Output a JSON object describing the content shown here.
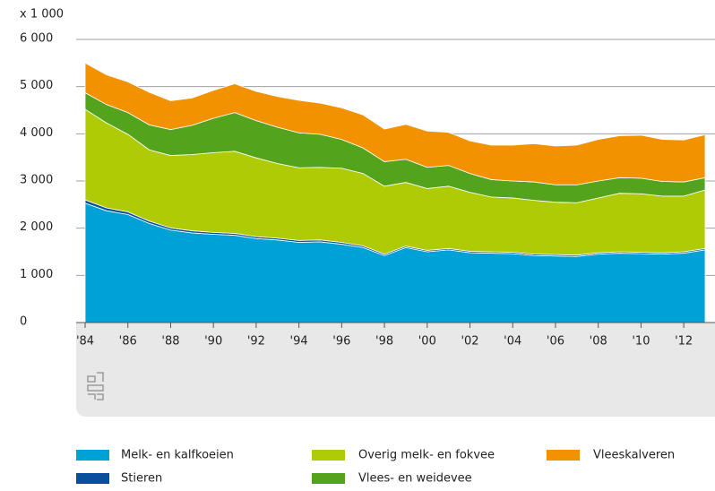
{
  "chart_data": {
    "type": "area",
    "stacked": true,
    "ylabel": "x 1 000",
    "x": [
      1984,
      1985,
      1986,
      1987,
      1988,
      1989,
      1990,
      1991,
      1992,
      1993,
      1994,
      1995,
      1996,
      1997,
      1998,
      1999,
      2000,
      2001,
      2002,
      2003,
      2004,
      2005,
      2006,
      2007,
      2008,
      2009,
      2010,
      2011,
      2012,
      2013
    ],
    "series": [
      {
        "name": "Melk- en kalfkoeien",
        "color": "#00a1d6",
        "values": [
          2530,
          2370,
          2290,
          2100,
          1960,
          1900,
          1870,
          1850,
          1780,
          1750,
          1700,
          1710,
          1660,
          1590,
          1420,
          1590,
          1500,
          1540,
          1480,
          1470,
          1460,
          1420,
          1410,
          1400,
          1450,
          1470,
          1460,
          1450,
          1470,
          1540
        ]
      },
      {
        "name": "Stieren",
        "color": "#0a4f9e",
        "values": [
          70,
          60,
          55,
          50,
          45,
          45,
          40,
          40,
          40,
          40,
          40,
          40,
          40,
          35,
          30,
          30,
          30,
          30,
          30,
          30,
          30,
          30,
          30,
          30,
          30,
          30,
          30,
          30,
          30,
          30
        ]
      },
      {
        "name": "Overig melk- en fokvee",
        "color": "#afcb05",
        "values": [
          1920,
          1800,
          1645,
          1510,
          1535,
          1615,
          1690,
          1740,
          1670,
          1580,
          1540,
          1540,
          1570,
          1535,
          1440,
          1350,
          1310,
          1320,
          1250,
          1160,
          1150,
          1140,
          1110,
          1110,
          1160,
          1240,
          1240,
          1200,
          1180,
          1240
        ]
      },
      {
        "name": "Vlees- en weidevee",
        "color": "#53a31d",
        "values": [
          350,
          390,
          460,
          530,
          550,
          620,
          730,
          820,
          790,
          770,
          740,
          700,
          610,
          540,
          520,
          490,
          450,
          440,
          400,
          370,
          360,
          390,
          370,
          380,
          360,
          330,
          330,
          310,
          300,
          260
        ]
      },
      {
        "name": "Vleeskalveren",
        "color": "#f39200",
        "values": [
          630,
          630,
          650,
          690,
          610,
          580,
          590,
          610,
          620,
          650,
          690,
          660,
          670,
          700,
          690,
          740,
          770,
          700,
          690,
          730,
          760,
          810,
          820,
          840,
          880,
          890,
          910,
          890,
          890,
          910
        ]
      }
    ],
    "xlim": [
      1984,
      2013
    ],
    "xticks": [
      {
        "value": 1984,
        "label": "'84"
      },
      {
        "value": 1986,
        "label": "'86"
      },
      {
        "value": 1988,
        "label": "'88"
      },
      {
        "value": 1990,
        "label": "'90"
      },
      {
        "value": 1992,
        "label": "'92"
      },
      {
        "value": 1994,
        "label": "'94"
      },
      {
        "value": 1996,
        "label": "'96"
      },
      {
        "value": 1998,
        "label": "'98"
      },
      {
        "value": 2000,
        "label": "'00"
      },
      {
        "value": 2002,
        "label": "'02"
      },
      {
        "value": 2004,
        "label": "'04"
      },
      {
        "value": 2006,
        "label": "'06"
      },
      {
        "value": 2008,
        "label": "'08"
      },
      {
        "value": 2010,
        "label": "'10"
      },
      {
        "value": 2012,
        "label": "'12"
      }
    ],
    "ylim": [
      0,
      6000
    ],
    "yticks": [
      0,
      {
        "value": 1000,
        "label": "1 000"
      },
      {
        "value": 2000,
        "label": "2 000"
      },
      {
        "value": 3000,
        "label": "3 000"
      },
      {
        "value": 4000,
        "label": "4 000"
      },
      {
        "value": 5000,
        "label": "5 000"
      },
      {
        "value": 6000,
        "label": "6 000"
      }
    ],
    "grid": true
  }
}
